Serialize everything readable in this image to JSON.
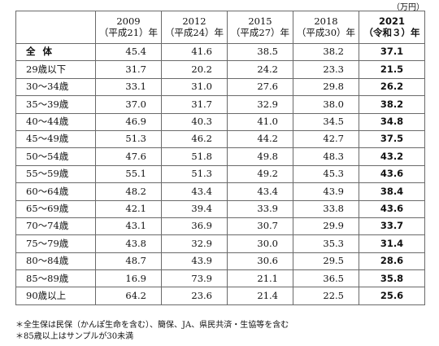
{
  "unit": "（万円）",
  "columns": [
    {
      "year": "2009",
      "era": "（平成21）年"
    },
    {
      "year": "2012",
      "era": "（平成24）年"
    },
    {
      "year": "2015",
      "era": "（平成27）年"
    },
    {
      "year": "2018",
      "era": "（平成30）年"
    },
    {
      "year": "2021",
      "era": "（令和３）年"
    }
  ],
  "rows": [
    {
      "label": "全体",
      "values": [
        "45.4",
        "41.6",
        "38.5",
        "38.2",
        "37.1"
      ]
    },
    {
      "label": "29歳以下",
      "values": [
        "31.7",
        "20.2",
        "24.2",
        "23.3",
        "21.5"
      ]
    },
    {
      "label": "30～34歳",
      "values": [
        "33.1",
        "31.0",
        "27.6",
        "29.8",
        "26.2"
      ]
    },
    {
      "label": "35～39歳",
      "values": [
        "37.0",
        "31.7",
        "32.9",
        "38.0",
        "38.2"
      ]
    },
    {
      "label": "40～44歳",
      "values": [
        "46.9",
        "40.3",
        "41.0",
        "34.5",
        "34.8"
      ]
    },
    {
      "label": "45～49歳",
      "values": [
        "51.3",
        "46.2",
        "44.2",
        "42.7",
        "37.5"
      ]
    },
    {
      "label": "50～54歳",
      "values": [
        "47.6",
        "51.8",
        "49.8",
        "48.3",
        "43.2"
      ]
    },
    {
      "label": "55～59歳",
      "values": [
        "55.1",
        "51.3",
        "49.2",
        "45.3",
        "43.6"
      ]
    },
    {
      "label": "60～64歳",
      "values": [
        "48.2",
        "43.4",
        "43.4",
        "43.9",
        "38.4"
      ]
    },
    {
      "label": "65～69歳",
      "values": [
        "42.1",
        "39.4",
        "33.9",
        "33.8",
        "43.6"
      ]
    },
    {
      "label": "70～74歳",
      "values": [
        "43.1",
        "36.9",
        "30.7",
        "29.9",
        "33.7"
      ]
    },
    {
      "label": "75～79歳",
      "values": [
        "43.8",
        "32.9",
        "30.0",
        "35.3",
        "31.4"
      ]
    },
    {
      "label": "80～84歳",
      "values": [
        "48.7",
        "43.9",
        "30.6",
        "29.5",
        "28.6"
      ]
    },
    {
      "label": "85～89歳",
      "values": [
        "16.9",
        "73.9",
        "21.1",
        "36.5",
        "35.8"
      ]
    },
    {
      "label": "90歳以上",
      "values": [
        "64.2",
        "23.6",
        "21.4",
        "22.5",
        "25.6"
      ]
    }
  ],
  "notes": [
    "＊全生保は民保（かんぽ生命を含む）、簡保、JA、県民共済・生協等を含む",
    "＊85歳以上はサンプルが30未満"
  ]
}
